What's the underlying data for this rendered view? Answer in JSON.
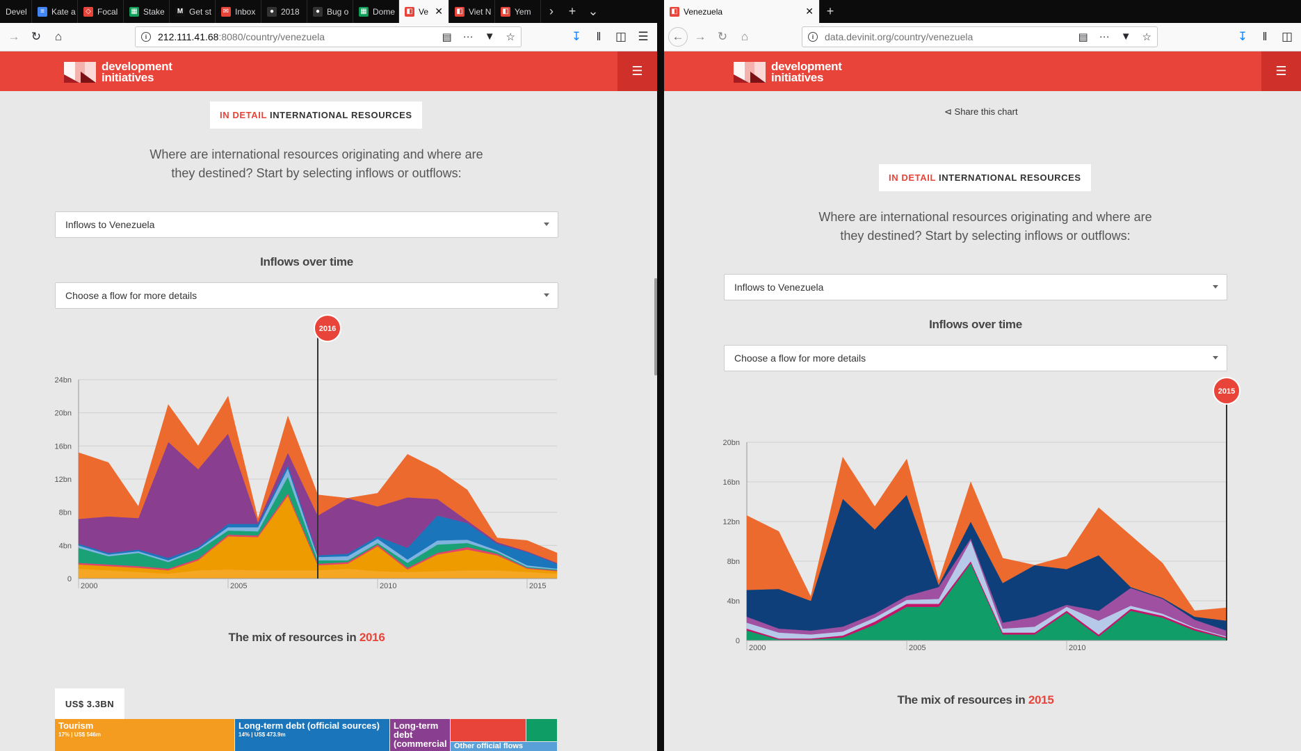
{
  "left_window": {
    "tabs": [
      {
        "label": "Devel",
        "fav": "#555",
        "glyph": ""
      },
      {
        "label": "Kate a",
        "fav": "#4285f4",
        "glyph": "≡"
      },
      {
        "label": "Focal",
        "fav": "#e84439",
        "glyph": "◇"
      },
      {
        "label": "Stake",
        "fav": "#0f9d58",
        "glyph": "▦"
      },
      {
        "label": "Get st",
        "fav": "#111",
        "glyph": "M"
      },
      {
        "label": "Inbox",
        "fav": "#e84439",
        "glyph": "✉"
      },
      {
        "label": "2018 ",
        "fav": "#333",
        "glyph": "●"
      },
      {
        "label": "Bug o",
        "fav": "#333",
        "glyph": "●"
      },
      {
        "label": "Dome",
        "fav": "#0f9d58",
        "glyph": "▦"
      },
      {
        "label": "Ve",
        "fav": "#e84439",
        "glyph": "◧"
      },
      {
        "label": "Viet N",
        "fav": "#e84439",
        "glyph": "◧"
      },
      {
        "label": "Yem",
        "fav": "#e84439",
        "glyph": "◧"
      }
    ],
    "url_host": "212.111.41.68",
    "url_rest": ":8080/country/venezuela",
    "logo_line1": "development",
    "logo_line2": "initiatives",
    "badge_prefix": "IN DETAIL",
    "badge_title": "INTERNATIONAL RESOURCES",
    "intro": "Where are international resources originating and where are they destined? Start by selecting inflows or outflows:",
    "flow_select": "Inflows to Venezuela",
    "over_time_heading": "Inflows over time",
    "detail_select": "Choose a flow for more details",
    "marker_year": "2016",
    "mix_heading_prefix": "The mix of resources in",
    "mix_year": "2016",
    "total": "US$ 3.3BN",
    "treemap": [
      {
        "title": "Tourism",
        "sub": "17% | US$ 546m",
        "color": "#f39c1f"
      },
      {
        "title": "Long-term debt (official sources)",
        "sub": "14% | US$ 473.9m",
        "color": "#1a75bb"
      },
      {
        "title": "Long-term debt (commercial",
        "sub": "",
        "color": "#8a3e90"
      },
      {
        "title": "",
        "sub": "",
        "color": "#e84439"
      },
      {
        "title": "Other official flows",
        "sub": "",
        "color": "#5aa0d8"
      },
      {
        "title": "",
        "sub": "",
        "color": "#0f9d66"
      }
    ]
  },
  "right_window": {
    "tab_label": "Venezuela",
    "url": "data.devinit.org/country/venezuela",
    "logo_line1": "development",
    "logo_line2": "initiatives",
    "share": "Share this chart",
    "badge_prefix": "IN DETAIL",
    "badge_title": "INTERNATIONAL RESOURCES",
    "intro": "Where are international resources originating and where are they destined? Start by selecting inflows or outflows:",
    "flow_select": "Inflows to Venezuela",
    "over_time_heading": "Inflows over time",
    "detail_select": "Choose a flow for more details",
    "marker_year": "2015",
    "mix_heading_prefix": "The mix of resources in",
    "mix_year": "2015"
  },
  "colors": {
    "brand_red": "#e84439",
    "dark_red": "#d0302a"
  },
  "chart_data": [
    {
      "type": "area",
      "stacked": true,
      "title": "Inflows over time",
      "x": [
        2000,
        2001,
        2002,
        2003,
        2004,
        2005,
        2006,
        2007,
        2008,
        2009,
        2010,
        2011,
        2012,
        2013,
        2014,
        2015,
        2016
      ],
      "ylim": [
        0,
        24
      ],
      "yticks": [
        0,
        4,
        8,
        12,
        16,
        20,
        24
      ],
      "ytick_labels": [
        "0",
        "4bn",
        "8bn",
        "12bn",
        "16bn",
        "20bn",
        "24bn"
      ],
      "xticks": [
        2000,
        2005,
        2010,
        2015
      ],
      "marker_x": 2008,
      "series": [
        {
          "name": "Light orange",
          "color": "#f5a623",
          "values": [
            1.2,
            1.0,
            0.8,
            0.6,
            1.0,
            1.1,
            1.0,
            1.0,
            1.0,
            1.2,
            0.9,
            0.8,
            0.9,
            1.0,
            1.0,
            0.8,
            0.6
          ]
        },
        {
          "name": "Orange",
          "color": "#ee9b00",
          "values": [
            0.5,
            0.5,
            0.5,
            0.4,
            1.2,
            4.0,
            4.0,
            9.0,
            0.6,
            0.6,
            3.0,
            0.3,
            2.0,
            2.5,
            1.8,
            0.4,
            0.3
          ]
        },
        {
          "name": "Pink",
          "color": "#e0456b",
          "values": [
            0.2,
            0.2,
            0.2,
            0.2,
            0.2,
            0.2,
            0.2,
            0.3,
            0.2,
            0.2,
            0.2,
            0.2,
            0.2,
            0.3,
            0.2,
            0.1,
            0.1
          ]
        },
        {
          "name": "Green",
          "color": "#1aa276",
          "values": [
            1.8,
            1.0,
            1.6,
            0.8,
            1.0,
            0.5,
            0.5,
            2.0,
            0.4,
            0.2,
            0.2,
            0.6,
            1.0,
            0.5,
            0.2,
            0.1,
            0.1
          ]
        },
        {
          "name": "Light blue",
          "color": "#7fb3e0",
          "values": [
            0.3,
            0.2,
            0.2,
            0.2,
            0.2,
            0.4,
            0.5,
            1.0,
            0.4,
            0.5,
            0.5,
            0.4,
            0.5,
            0.4,
            0.2,
            0.2,
            0.1
          ]
        },
        {
          "name": "Blue",
          "color": "#1a75bb",
          "values": [
            0.2,
            0.2,
            0.2,
            0.3,
            0.2,
            0.4,
            0.4,
            0.4,
            0.2,
            0.3,
            0.3,
            1.4,
            3.0,
            2.0,
            0.8,
            1.6,
            0.6
          ]
        },
        {
          "name": "Purple",
          "color": "#8a3e90",
          "values": [
            3.0,
            4.4,
            3.8,
            14.0,
            9.4,
            10.9,
            0.2,
            1.5,
            4.8,
            6.7,
            3.6,
            6.1,
            2.0,
            0.3,
            0.2,
            0.1,
            0.1
          ]
        },
        {
          "name": "Red orange",
          "color": "#ec6a2e",
          "values": [
            8.0,
            6.5,
            1.4,
            4.5,
            2.8,
            4.5,
            0.4,
            4.4,
            2.5,
            0.0,
            1.6,
            5.2,
            3.6,
            3.7,
            0.5,
            1.3,
            1.2
          ]
        }
      ]
    },
    {
      "type": "area",
      "stacked": true,
      "title": "Inflows over time",
      "x": [
        2000,
        2001,
        2002,
        2003,
        2004,
        2005,
        2006,
        2007,
        2008,
        2009,
        2010,
        2011,
        2012,
        2013,
        2014,
        2015
      ],
      "ylim": [
        0,
        20
      ],
      "yticks": [
        0,
        4,
        8,
        12,
        16,
        20
      ],
      "ytick_labels": [
        "0",
        "4bn",
        "8bn",
        "12bn",
        "16bn",
        "20bn"
      ],
      "xticks": [
        2000,
        2005,
        2010
      ],
      "marker_x": 2015,
      "series": [
        {
          "name": "Green",
          "color": "#109d68",
          "values": [
            1.0,
            0.1,
            0.1,
            0.3,
            1.6,
            3.4,
            3.4,
            7.8,
            0.6,
            0.6,
            2.8,
            0.4,
            3.0,
            2.3,
            1.0,
            0.2
          ]
        },
        {
          "name": "Magenta",
          "color": "#c3166b",
          "values": [
            0.2,
            0.1,
            0.1,
            0.2,
            0.3,
            0.3,
            0.3,
            0.2,
            0.2,
            0.2,
            0.2,
            0.2,
            0.2,
            0.2,
            0.2,
            0.1
          ]
        },
        {
          "name": "Light blue",
          "color": "#b7c9e8",
          "values": [
            0.6,
            0.6,
            0.4,
            0.4,
            0.4,
            0.4,
            0.5,
            2.1,
            0.4,
            0.6,
            0.4,
            1.4,
            0.3,
            0.2,
            0.1,
            0.1
          ]
        },
        {
          "name": "Purple",
          "color": "#a050a0",
          "values": [
            0.6,
            0.4,
            0.4,
            0.5,
            0.4,
            0.4,
            1.2,
            0.2,
            0.6,
            1.0,
            0.2,
            1.0,
            1.8,
            1.5,
            0.8,
            0.6
          ]
        },
        {
          "name": "Dark blue",
          "color": "#0e3f7a",
          "values": [
            2.7,
            4.0,
            3.0,
            12.9,
            8.5,
            10.2,
            0.2,
            1.7,
            4.0,
            5.2,
            3.6,
            5.6,
            0.1,
            0.1,
            0.3,
            1.0
          ]
        },
        {
          "name": "Red orange",
          "color": "#ec6a2e",
          "values": [
            7.5,
            5.8,
            0.4,
            4.2,
            2.3,
            3.6,
            0.4,
            4.0,
            2.5,
            0.0,
            1.3,
            4.8,
            5.2,
            3.5,
            0.6,
            1.3
          ]
        }
      ]
    }
  ]
}
